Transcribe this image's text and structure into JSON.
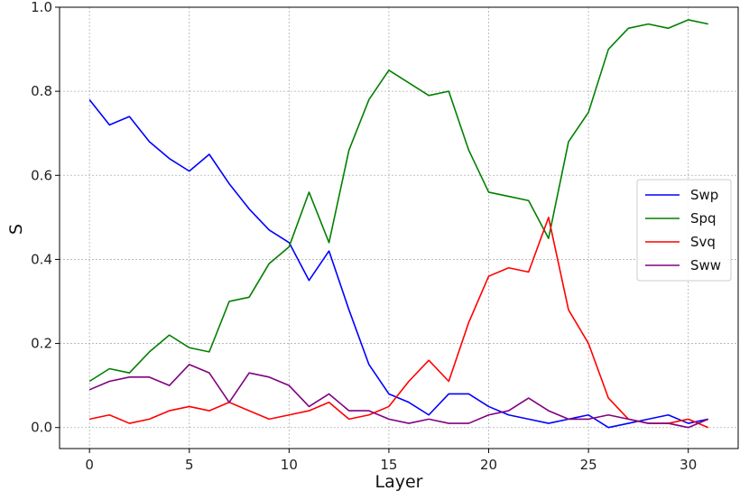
{
  "chart_data": {
    "type": "line",
    "xlabel": "Layer",
    "ylabel": "S",
    "xlim": [
      -1.5,
      32.5
    ],
    "ylim": [
      -0.05,
      1.0
    ],
    "x_ticks": [
      0,
      5,
      10,
      15,
      20,
      25,
      30
    ],
    "y_ticks": [
      "0.0",
      "0.2",
      "0.4",
      "0.6",
      "0.8",
      "1.0"
    ],
    "grid": true,
    "legend_position": "center-right",
    "x": [
      0,
      1,
      2,
      3,
      4,
      5,
      6,
      7,
      8,
      9,
      10,
      11,
      12,
      13,
      14,
      15,
      16,
      17,
      18,
      19,
      20,
      21,
      22,
      23,
      24,
      25,
      26,
      27,
      28,
      29,
      30,
      31
    ],
    "series": [
      {
        "name": "Swp",
        "color": "#0000ff",
        "values": [
          0.78,
          0.72,
          0.74,
          0.68,
          0.64,
          0.61,
          0.65,
          0.58,
          0.52,
          0.47,
          0.44,
          0.35,
          0.42,
          0.28,
          0.15,
          0.08,
          0.06,
          0.03,
          0.08,
          0.08,
          0.05,
          0.03,
          0.02,
          0.01,
          0.02,
          0.03,
          0.0,
          0.01,
          0.02,
          0.03,
          0.01,
          0.02
        ]
      },
      {
        "name": "Spq",
        "color": "#008000",
        "values": [
          0.11,
          0.14,
          0.13,
          0.18,
          0.22,
          0.19,
          0.18,
          0.3,
          0.31,
          0.39,
          0.43,
          0.56,
          0.44,
          0.66,
          0.78,
          0.85,
          0.82,
          0.79,
          0.8,
          0.66,
          0.56,
          0.55,
          0.54,
          0.45,
          0.68,
          0.75,
          0.9,
          0.95,
          0.96,
          0.95,
          0.97,
          0.96
        ]
      },
      {
        "name": "Svq",
        "color": "#ff0000",
        "values": [
          0.02,
          0.03,
          0.01,
          0.02,
          0.04,
          0.05,
          0.04,
          0.06,
          0.04,
          0.02,
          0.03,
          0.04,
          0.06,
          0.02,
          0.03,
          0.05,
          0.11,
          0.16,
          0.11,
          0.25,
          0.36,
          0.38,
          0.37,
          0.5,
          0.28,
          0.2,
          0.07,
          0.02,
          0.01,
          0.01,
          0.02,
          0.0
        ]
      },
      {
        "name": "Sww",
        "color": "#800080",
        "values": [
          0.09,
          0.11,
          0.12,
          0.12,
          0.1,
          0.15,
          0.13,
          0.06,
          0.13,
          0.12,
          0.1,
          0.05,
          0.08,
          0.04,
          0.04,
          0.02,
          0.01,
          0.02,
          0.01,
          0.01,
          0.03,
          0.04,
          0.07,
          0.04,
          0.02,
          0.02,
          0.03,
          0.02,
          0.01,
          0.01,
          0.0,
          0.02
        ]
      }
    ]
  }
}
